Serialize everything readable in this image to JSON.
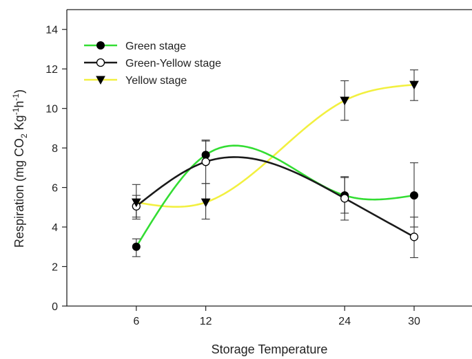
{
  "chart_data": {
    "type": "line",
    "title": "",
    "xlabel": "Storage Temperature",
    "ylabel": {
      "main": "Respiration (mg CO",
      "sub": "2",
      "mid1": " Kg",
      "sup1": "-1",
      "mid2": "h",
      "sup2": "-1",
      "end": ")"
    },
    "x": [
      6,
      12,
      24,
      30
    ],
    "xticks": [
      "6",
      "12",
      "24",
      "30"
    ],
    "xlim": [
      0,
      35
    ],
    "ylim": [
      0,
      15
    ],
    "yticks": [
      "0",
      "2",
      "4",
      "6",
      "8",
      "10",
      "12",
      "14"
    ],
    "grid": false,
    "legend_position": "top-left",
    "series": [
      {
        "name": "Green stage",
        "color": "#33dd33",
        "marker": "filled-circle",
        "values": [
          3.0,
          7.65,
          5.6,
          5.6
        ],
        "err_low": [
          2.5,
          7.3,
          4.7,
          4.0
        ],
        "err_high": [
          3.4,
          8.35,
          6.55,
          7.25
        ]
      },
      {
        "name": "Green-Yellow stage",
        "color": "#1a1a1a",
        "marker": "open-circle",
        "values": [
          5.05,
          7.3,
          5.45,
          3.5
        ],
        "err_low": [
          4.5,
          6.2,
          4.35,
          2.45
        ],
        "err_high": [
          5.6,
          8.4,
          6.5,
          4.5
        ]
      },
      {
        "name": "Yellow stage",
        "color": "#f2f040",
        "marker": "filled-triangle-down",
        "values": [
          5.25,
          5.25,
          10.4,
          11.2
        ],
        "err_low": [
          4.4,
          4.4,
          9.4,
          10.4
        ],
        "err_high": [
          6.15,
          6.2,
          11.4,
          11.95
        ]
      }
    ]
  }
}
